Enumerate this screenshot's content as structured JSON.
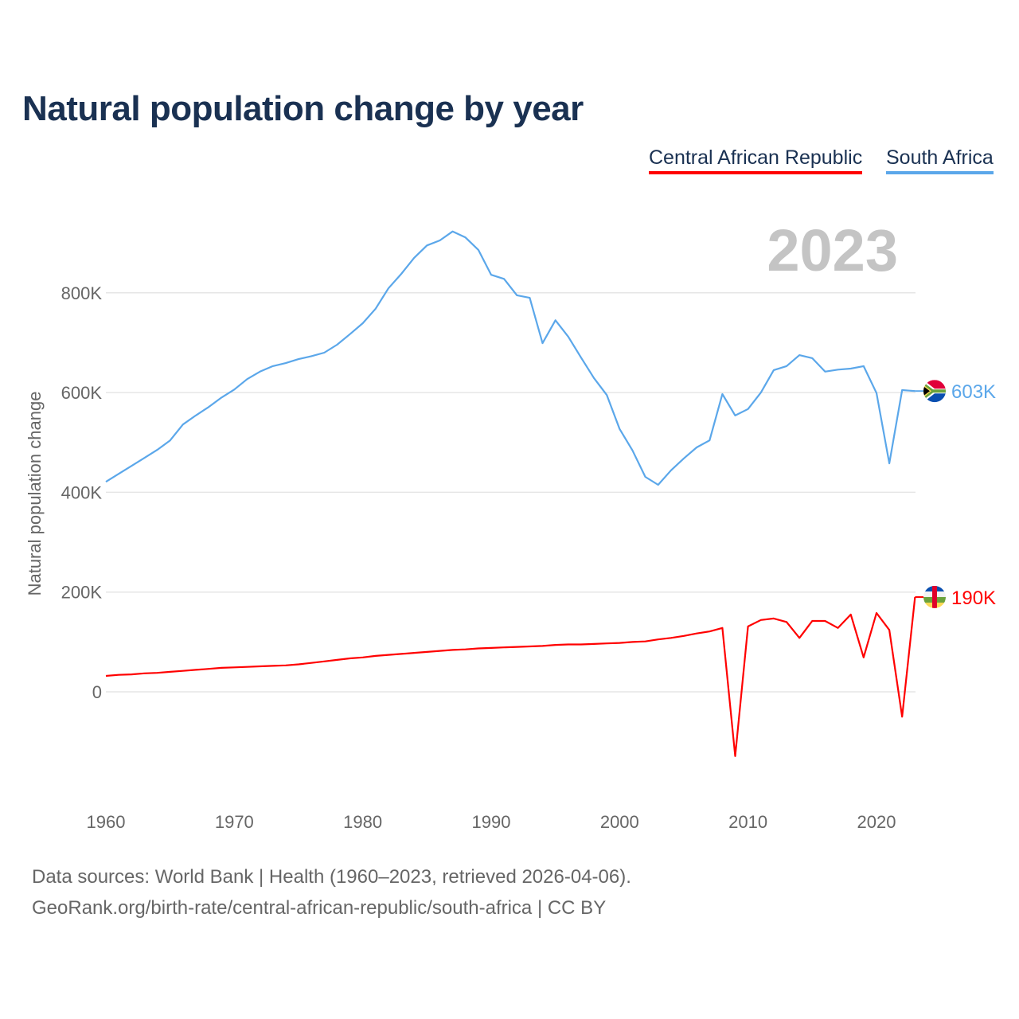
{
  "title": "Natural population change by year",
  "footer": {
    "line1": "Data sources: World Bank | Health (1960–2023, retrieved 2026-04-06).",
    "line2": "GeoRank.org/birth-rate/central-african-republic/south-africa | CC BY"
  },
  "chart_data": {
    "type": "line",
    "title": "Natural population change by year",
    "xlabel": "",
    "ylabel": "Natural population change",
    "year_label": "2023",
    "xlim": [
      1960,
      2023
    ],
    "ylim": [
      -200000,
      950000
    ],
    "x_ticks": [
      1960,
      1970,
      1980,
      1990,
      2000,
      2010,
      2020
    ],
    "y_ticks": [
      {
        "v": 0,
        "label": "0"
      },
      {
        "v": 200000,
        "label": "200K"
      },
      {
        "v": 400000,
        "label": "400K"
      },
      {
        "v": 600000,
        "label": "600K"
      },
      {
        "v": 800000,
        "label": "800K"
      }
    ],
    "grid": true,
    "legend": "top-right",
    "x_start": 1960,
    "series": [
      {
        "name": "Central African Republic",
        "color": "#ff0000",
        "end_label": "190K",
        "flag": "central-african-republic-flag-icon",
        "values": [
          32,
          34,
          35,
          37,
          38,
          40,
          42,
          44,
          46,
          48,
          49,
          50,
          51,
          52,
          53,
          55,
          58,
          61,
          64,
          67,
          69,
          72,
          74,
          76,
          78,
          80,
          82,
          84,
          85,
          87,
          88,
          89,
          90,
          91,
          92,
          94,
          95,
          95,
          96,
          97,
          98,
          100,
          101,
          105,
          108,
          112,
          117,
          121,
          128,
          -129,
          131,
          144,
          147,
          140,
          108,
          142,
          142,
          128,
          155,
          69,
          158,
          124,
          -50,
          190
        ]
      },
      {
        "name": "South Africa",
        "color": "#5ba7ea",
        "end_label": "603K",
        "flag": "south-africa-flag-icon",
        "values": [
          421,
          437,
          453,
          469,
          485,
          504,
          536,
          554,
          571,
          590,
          606,
          627,
          642,
          653,
          659,
          667,
          673,
          680,
          696,
          717,
          739,
          768,
          809,
          838,
          870,
          895,
          905,
          923,
          911,
          886,
          836,
          828,
          795,
          790,
          699,
          745,
          712,
          670,
          629,
          595,
          527,
          484,
          431,
          415,
          444,
          468,
          490,
          504,
          597,
          554,
          567,
          600,
          645,
          653,
          675,
          669,
          642,
          646,
          648,
          653,
          599,
          458,
          605,
          603
        ]
      }
    ],
    "value_unit": "thousands"
  }
}
